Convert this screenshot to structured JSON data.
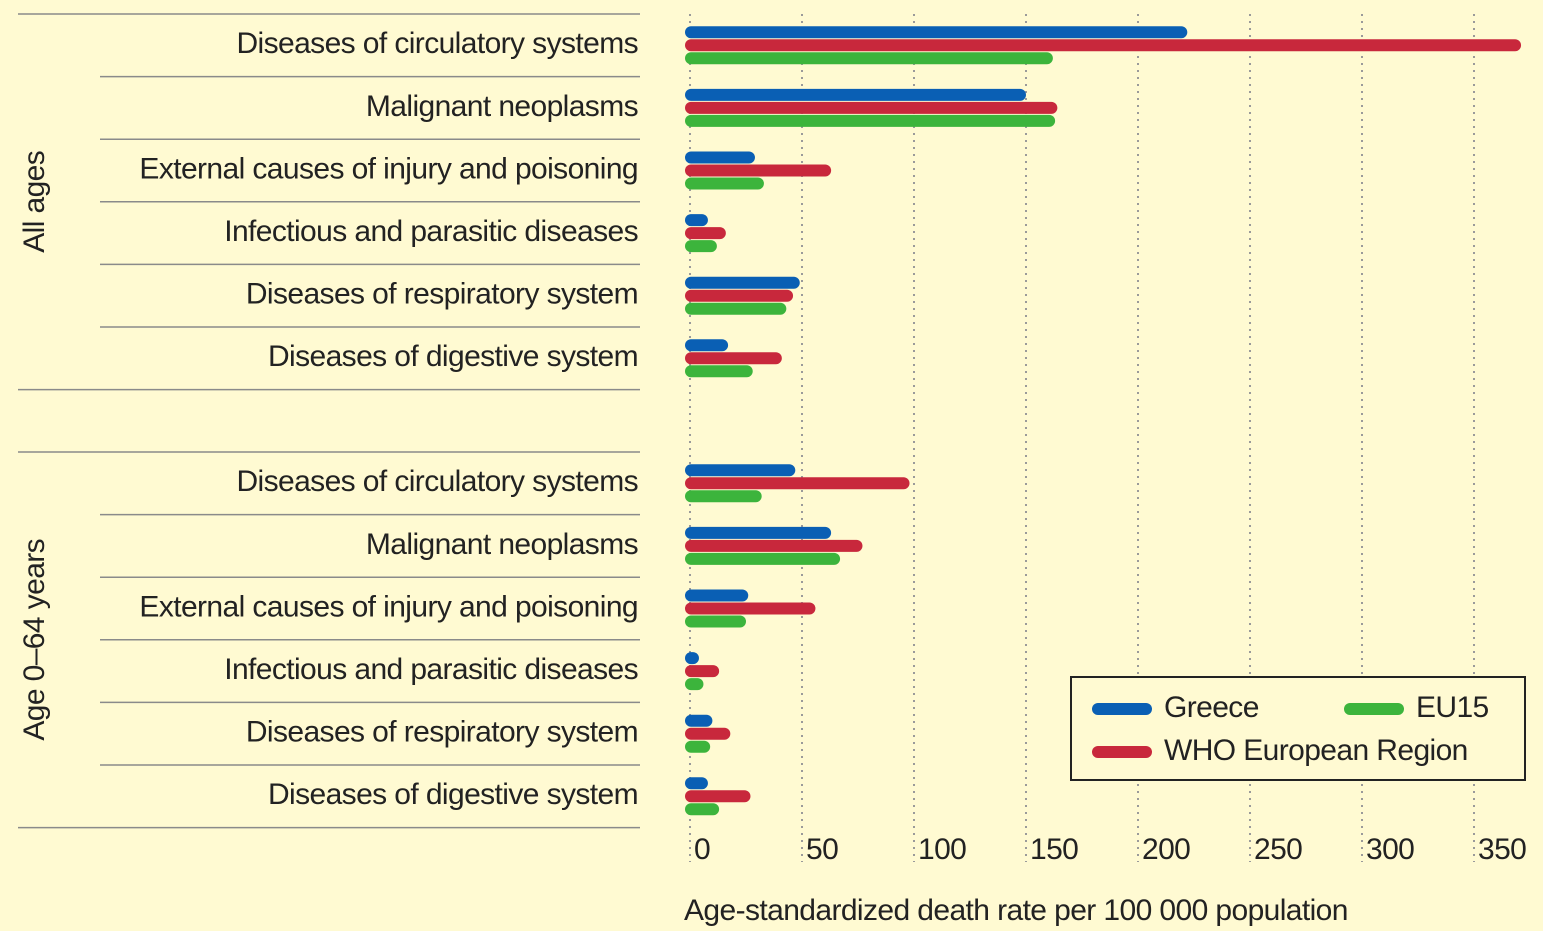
{
  "chart_data": {
    "type": "bar",
    "orientation": "horizontal",
    "groups": [
      {
        "label": "All ages",
        "categories": [
          "Diseases of circulatory systems",
          "Malignant neoplasms",
          "External causes of injury and poisoning",
          "Infectious and parasitic diseases",
          "Diseases of respiratory system",
          "Diseases of digestive system"
        ]
      },
      {
        "label": "Age 0–64 years",
        "categories": [
          "Diseases of circulatory systems",
          "Malignant neoplasms",
          "External causes of injury and poisoning",
          "Infectious and parasitic diseases",
          "Diseases of respiratory system",
          "Diseases of digestive system"
        ]
      }
    ],
    "series": [
      {
        "name": "Greece",
        "color": "#0a5fb4",
        "values": [
          222,
          150,
          29,
          8,
          49,
          17,
          47,
          63,
          26,
          4,
          10,
          8
        ]
      },
      {
        "name": "WHO European Region",
        "color": "#c8283c",
        "values": [
          371,
          164,
          63,
          16,
          46,
          41,
          98,
          77,
          56,
          13,
          18,
          27
        ]
      },
      {
        "name": "EU15",
        "color": "#3cb43c",
        "values": [
          162,
          163,
          33,
          12,
          43,
          28,
          32,
          67,
          25,
          6,
          9,
          13
        ]
      }
    ],
    "xlim": [
      0,
      373
    ],
    "xticks": [
      0,
      50,
      100,
      150,
      200,
      250,
      300,
      350
    ],
    "xlabel": "Age-standardized death rate per 100 000 population",
    "grid": true,
    "legend": "lower right"
  }
}
